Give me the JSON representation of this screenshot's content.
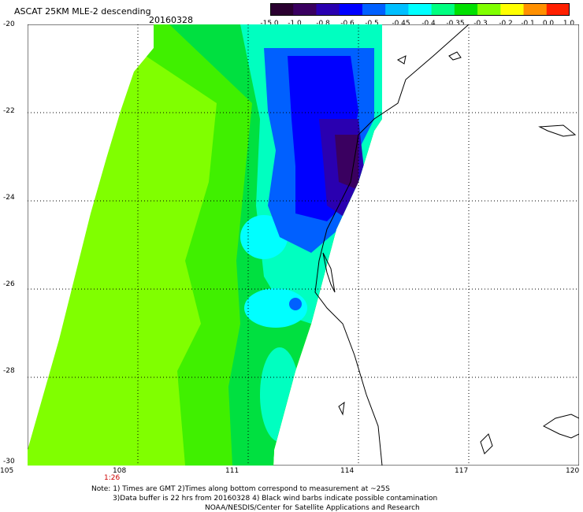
{
  "header": {
    "title": "ASCAT 25KM MLE-2 descending",
    "date": "20160328"
  },
  "colorbar": {
    "labels": [
      "-15.0",
      "-1.0",
      "-0.8",
      "-0.6",
      "-0.5",
      "-0.45",
      "-0.4",
      "-0.35",
      "-0.3",
      "-0.2",
      "-0.1",
      "0.0",
      "1.0"
    ],
    "colors": [
      "#2a0030",
      "#3a0060",
      "#2a00b0",
      "#0000ff",
      "#0060ff",
      "#00bfff",
      "#00ffff",
      "#00ff80",
      "#00e000",
      "#80ff00",
      "#ffff00",
      "#ff9000",
      "#ff2000"
    ]
  },
  "map": {
    "lon_labels": [
      "105",
      "108",
      "111",
      "114",
      "117",
      "120"
    ],
    "lat_labels": [
      "-20",
      "-22",
      "-24",
      "-26",
      "-28",
      "-30"
    ],
    "time_label": "1:26",
    "time_color": "#cc0000"
  },
  "footer": {
    "line1": "Note: 1) Times are GMT 2)Times along bottom correspond to measurement at ~25S",
    "line2": "3)Data buffer is 22 hrs from 20160328 4) Black wind barbs indicate possible contamination",
    "line3": "NOAA/NESDIS/Center for Satellite Applications and Research"
  }
}
